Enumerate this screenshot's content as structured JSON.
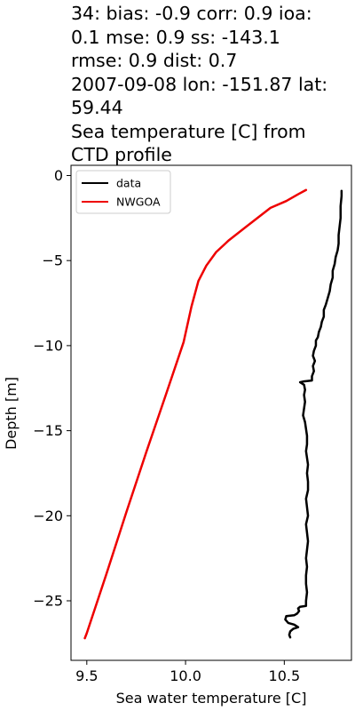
{
  "chart_data": {
    "type": "line",
    "title_lines": [
      "34: bias: -0.9  corr: 0.9  ioa:",
      "0.1  mse: 0.9  ss: -143.1",
      "rmse: 0.9  dist: 0.7",
      "2007-09-08 lon: -151.87 lat:",
      "59.44",
      "Sea temperature [C] from",
      "CTD profile"
    ],
    "xlabel": "Sea water temperature [C]",
    "ylabel": "Depth [m]",
    "xlim": [
      9.42,
      10.84
    ],
    "ylim": [
      -28.5,
      0.6
    ],
    "xticks": [
      9.5,
      10.0,
      10.5
    ],
    "xtick_labels": [
      "9.5",
      "10.0",
      "10.5"
    ],
    "yticks": [
      0,
      -5,
      -10,
      -15,
      -20,
      -25
    ],
    "ytick_labels": [
      "0",
      "−5",
      "−10",
      "−15",
      "−20",
      "−25"
    ],
    "legend_position": "upper-left",
    "series": [
      {
        "name": "data",
        "color": "#000000",
        "points": [
          [
            10.79,
            -0.9
          ],
          [
            10.79,
            -1.2
          ],
          [
            10.785,
            -1.8
          ],
          [
            10.785,
            -2.5
          ],
          [
            10.78,
            -3.0
          ],
          [
            10.775,
            -3.5
          ],
          [
            10.775,
            -4.0
          ],
          [
            10.77,
            -4.4
          ],
          [
            10.76,
            -4.8
          ],
          [
            10.755,
            -5.2
          ],
          [
            10.745,
            -5.6
          ],
          [
            10.745,
            -6.0
          ],
          [
            10.735,
            -6.4
          ],
          [
            10.73,
            -6.8
          ],
          [
            10.72,
            -7.2
          ],
          [
            10.71,
            -7.6
          ],
          [
            10.7,
            -7.9
          ],
          [
            10.7,
            -8.3
          ],
          [
            10.69,
            -8.6
          ],
          [
            10.685,
            -8.9
          ],
          [
            10.675,
            -9.2
          ],
          [
            10.67,
            -9.5
          ],
          [
            10.66,
            -9.7
          ],
          [
            10.66,
            -10.0
          ],
          [
            10.65,
            -10.3
          ],
          [
            10.645,
            -10.6
          ],
          [
            10.655,
            -10.9
          ],
          [
            10.645,
            -11.2
          ],
          [
            10.65,
            -11.5
          ],
          [
            10.64,
            -11.8
          ],
          [
            10.64,
            -12.05
          ],
          [
            10.6,
            -12.1
          ],
          [
            10.58,
            -12.15
          ],
          [
            10.6,
            -12.3
          ],
          [
            10.605,
            -12.6
          ],
          [
            10.6,
            -12.9
          ],
          [
            10.605,
            -13.3
          ],
          [
            10.6,
            -13.7
          ],
          [
            10.595,
            -14.1
          ],
          [
            10.605,
            -14.5
          ],
          [
            10.61,
            -14.9
          ],
          [
            10.615,
            -15.3
          ],
          [
            10.615,
            -15.8
          ],
          [
            10.61,
            -16.2
          ],
          [
            10.615,
            -16.6
          ],
          [
            10.62,
            -17.0
          ],
          [
            10.615,
            -17.5
          ],
          [
            10.62,
            -18.0
          ],
          [
            10.62,
            -18.5
          ],
          [
            10.61,
            -19.0
          ],
          [
            10.615,
            -19.5
          ],
          [
            10.62,
            -20.0
          ],
          [
            10.61,
            -20.5
          ],
          [
            10.615,
            -21.0
          ],
          [
            10.62,
            -21.5
          ],
          [
            10.615,
            -22.0
          ],
          [
            10.61,
            -22.5
          ],
          [
            10.615,
            -23.0
          ],
          [
            10.61,
            -23.5
          ],
          [
            10.61,
            -24.0
          ],
          [
            10.615,
            -24.5
          ],
          [
            10.61,
            -25.0
          ],
          [
            10.61,
            -25.3
          ],
          [
            10.58,
            -25.35
          ],
          [
            10.57,
            -25.45
          ],
          [
            10.575,
            -25.6
          ],
          [
            10.565,
            -25.75
          ],
          [
            10.55,
            -25.85
          ],
          [
            10.51,
            -25.9
          ],
          [
            10.505,
            -26.1
          ],
          [
            10.52,
            -26.3
          ],
          [
            10.55,
            -26.4
          ],
          [
            10.57,
            -26.55
          ],
          [
            10.545,
            -26.65
          ],
          [
            10.53,
            -26.8
          ],
          [
            10.525,
            -27.0
          ],
          [
            10.53,
            -27.15
          ]
        ]
      },
      {
        "name": "NWGOA",
        "color": "#ee0000",
        "points": [
          [
            10.61,
            -0.85
          ],
          [
            10.57,
            -1.1
          ],
          [
            10.51,
            -1.5
          ],
          [
            10.43,
            -1.9
          ],
          [
            10.33,
            -2.8
          ],
          [
            10.22,
            -3.8
          ],
          [
            10.155,
            -4.5
          ],
          [
            10.105,
            -5.3
          ],
          [
            10.065,
            -6.2
          ],
          [
            10.03,
            -7.7
          ],
          [
            9.99,
            -9.8
          ],
          [
            9.9,
            -12.9
          ],
          [
            9.8,
            -16.3
          ],
          [
            9.7,
            -19.8
          ],
          [
            9.6,
            -23.4
          ],
          [
            9.5,
            -26.9
          ],
          [
            9.49,
            -27.2
          ]
        ]
      }
    ]
  }
}
